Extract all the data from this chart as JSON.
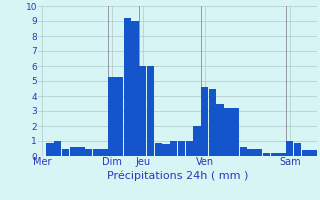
{
  "title": "",
  "xlabel": "Précipitations 24h ( mm )",
  "ylabel": "",
  "bar_color": "#1555CC",
  "background_color": "#D8F5F5",
  "grid_color": "#B0C8C8",
  "text_color": "#3333BB",
  "ylim": [
    0,
    10
  ],
  "yticks": [
    0,
    1,
    2,
    3,
    4,
    5,
    6,
    7,
    8,
    9,
    10
  ],
  "values": [
    0.0,
    0.9,
    1.0,
    0.5,
    0.6,
    0.6,
    0.5,
    0.5,
    0.5,
    5.3,
    5.3,
    9.2,
    9.0,
    6.0,
    6.0,
    0.9,
    0.8,
    1.0,
    1.0,
    1.0,
    2.0,
    4.6,
    4.5,
    3.5,
    3.2,
    3.2,
    0.6,
    0.5,
    0.5,
    0.2,
    0.2,
    0.2,
    1.0,
    0.9,
    0.4,
    0.4
  ],
  "day_labels": [
    "Mer",
    "Dim",
    "Jeu",
    "Ven",
    "Sam"
  ],
  "day_positions": [
    0,
    9,
    13,
    21,
    32
  ],
  "vline_positions": [
    9,
    13,
    21,
    32
  ]
}
